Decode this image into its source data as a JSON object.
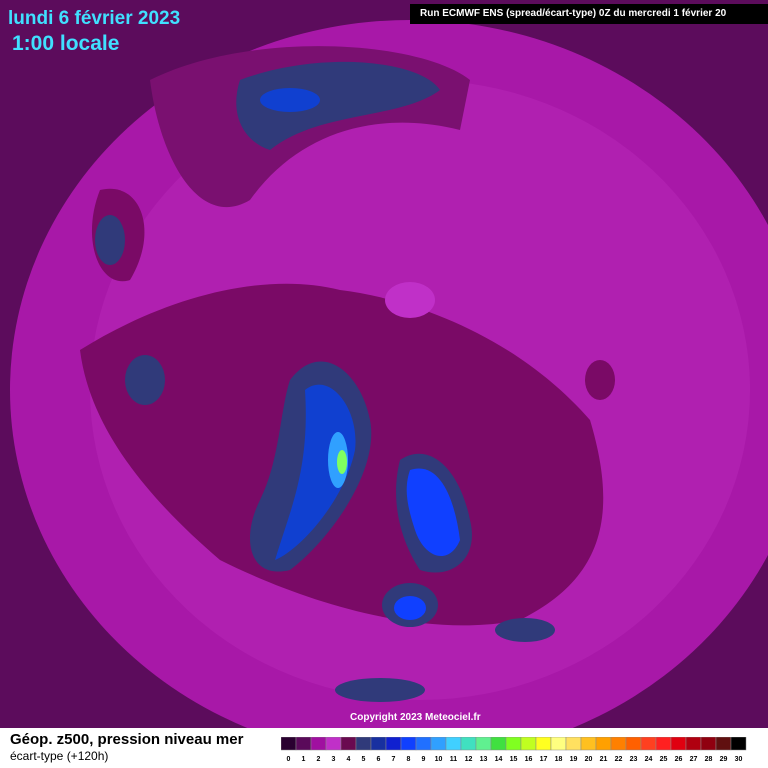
{
  "header": {
    "date": "lundi 6 février 2023",
    "time": "1:00 locale",
    "run": "Run ECMWF ENS (spread/écart-type) 0Z du mercredi 1 février 20"
  },
  "copyright": "Copyright 2023 Meteociel.fr",
  "footer": {
    "title": "Géop. z500, pression niveau mer",
    "subtitle": "écart-type  (+120h)"
  },
  "legend": {
    "labels": [
      "0",
      "1",
      "2",
      "3",
      "4",
      "5",
      "6",
      "7",
      "8",
      "9",
      "10",
      "11",
      "12",
      "13",
      "14",
      "15",
      "16",
      "17",
      "18",
      "19",
      "20",
      "21",
      "22",
      "23",
      "24",
      "25",
      "26",
      "27",
      "28",
      "29",
      "30"
    ],
    "colors": [
      "#2a0030",
      "#5a0a5a",
      "#a010a0",
      "#c030c8",
      "#6a0a50",
      "#303a7a",
      "#1830a0",
      "#1020d0",
      "#1040ff",
      "#2070ff",
      "#30a0ff",
      "#40d0ff",
      "#40e0c0",
      "#60f090",
      "#40e040",
      "#80ff20",
      "#c0ff20",
      "#ffff20",
      "#ffff80",
      "#ffe060",
      "#ffc020",
      "#ffa000",
      "#ff8000",
      "#ff6000",
      "#ff4020",
      "#ff2020",
      "#e00010",
      "#b00010",
      "#900010",
      "#601010",
      "#000000"
    ]
  }
}
